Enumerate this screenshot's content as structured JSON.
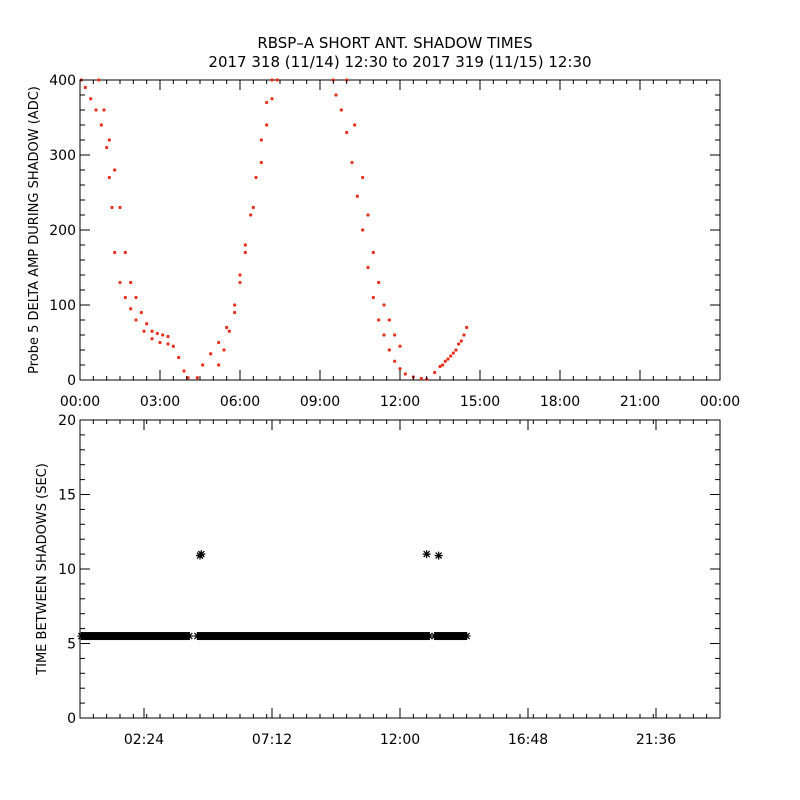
{
  "title_line1": "RBSP–A SHORT ANT. SHADOW TIMES",
  "title_line2": "2017 318 (11/14) 12:30 to 2017 319 (11/15) 12:30",
  "colors": {
    "series_top": "#e8301a",
    "series_bottom": "#000000",
    "axes": "#000000"
  },
  "chart_data": [
    {
      "type": "scatter",
      "ylabel": "Probe 5 DELTA AMP DURING SHADOW (ADC)",
      "xlabel": "",
      "xlim": [
        0,
        24
      ],
      "ylim": [
        0,
        400
      ],
      "x_unit": "hours",
      "xticks": [
        0,
        3,
        6,
        9,
        12,
        15,
        18,
        21,
        24
      ],
      "xtick_labels": [
        "00:00",
        "03:00",
        "06:00",
        "09:00",
        "12:00",
        "15:00",
        "18:00",
        "21:00",
        "00:00"
      ],
      "yticks": [
        0,
        100,
        200,
        300,
        400
      ],
      "ytick_labels": [
        "0",
        "100",
        "200",
        "300",
        "400"
      ],
      "grid": false,
      "series": [
        {
          "marker": "dot",
          "x": [
            0.05,
            0.2,
            0.4,
            0.6,
            0.8,
            1.0,
            1.1,
            1.2,
            1.3,
            1.5,
            1.7,
            1.9,
            2.1,
            2.4,
            2.7,
            3.0,
            3.3,
            3.5,
            3.7,
            3.9,
            4.05,
            0.7,
            0.9,
            1.1,
            1.3,
            1.5,
            1.7,
            1.9,
            2.1,
            2.3,
            2.5,
            2.7,
            2.9,
            3.1,
            3.3,
            4.4,
            4.6,
            4.9,
            5.2,
            5.5,
            5.8,
            6.0,
            6.2,
            6.5,
            6.8,
            7.0,
            7.2,
            7.4,
            5.2,
            5.4,
            5.6,
            5.8,
            6.0,
            6.2,
            6.4,
            6.6,
            6.8,
            7.0,
            7.2,
            9.5,
            9.6,
            9.8,
            10.0,
            10.2,
            10.4,
            10.6,
            10.8,
            11.0,
            11.2,
            11.4,
            11.6,
            11.8,
            12.0,
            12.2,
            12.5,
            12.8,
            13.0,
            10.0,
            10.3,
            10.6,
            10.8,
            11.0,
            11.2,
            11.4,
            11.6,
            11.8,
            12.0,
            13.3,
            13.5,
            13.7,
            13.9,
            14.1,
            14.3,
            14.5,
            13.6,
            13.8,
            14.0,
            14.2,
            14.4
          ],
          "y": [
            400,
            390,
            375,
            360,
            340,
            310,
            270,
            230,
            170,
            130,
            110,
            95,
            80,
            65,
            55,
            50,
            48,
            45,
            30,
            12,
            3,
            400,
            360,
            320,
            280,
            230,
            170,
            130,
            110,
            90,
            75,
            65,
            62,
            60,
            58,
            3,
            20,
            35,
            50,
            70,
            100,
            140,
            180,
            230,
            290,
            340,
            375,
            400,
            20,
            40,
            65,
            90,
            130,
            170,
            220,
            270,
            320,
            370,
            400,
            400,
            380,
            360,
            330,
            290,
            245,
            200,
            150,
            110,
            80,
            60,
            40,
            25,
            15,
            8,
            4,
            2,
            1,
            400,
            340,
            270,
            220,
            170,
            130,
            100,
            80,
            60,
            45,
            10,
            18,
            25,
            32,
            40,
            52,
            70,
            20,
            28,
            36,
            48,
            60
          ]
        }
      ]
    },
    {
      "type": "scatter",
      "ylabel": "TIME BETWEEN SHADOWS (SEC)",
      "xlabel": "",
      "xlim": [
        0,
        24
      ],
      "ylim": [
        0,
        20
      ],
      "x_unit": "hours",
      "xticks": [
        2.4,
        7.2,
        12.0,
        16.8,
        21.6
      ],
      "xtick_labels": [
        "02:24",
        "07:12",
        "12:00",
        "16:48",
        "21:36"
      ],
      "yticks": [
        0,
        5,
        10,
        15,
        20
      ],
      "ytick_labels": [
        "0",
        "5",
        "10",
        "15",
        "20"
      ],
      "grid": false,
      "series": [
        {
          "marker": "asterisk",
          "segments": [
            {
              "x_start": 0.05,
              "x_end": 4.1,
              "y": 5.5
            },
            {
              "x_start": 4.4,
              "x_end": 13.1,
              "y": 5.5
            },
            {
              "x_start": 13.3,
              "x_end": 14.5,
              "y": 5.5
            }
          ],
          "points": [
            {
              "x": 4.55,
              "y": 11.0
            },
            {
              "x": 4.5,
              "y": 10.9
            },
            {
              "x": 13.0,
              "y": 11.0
            },
            {
              "x": 13.45,
              "y": 10.9
            }
          ]
        }
      ]
    }
  ]
}
